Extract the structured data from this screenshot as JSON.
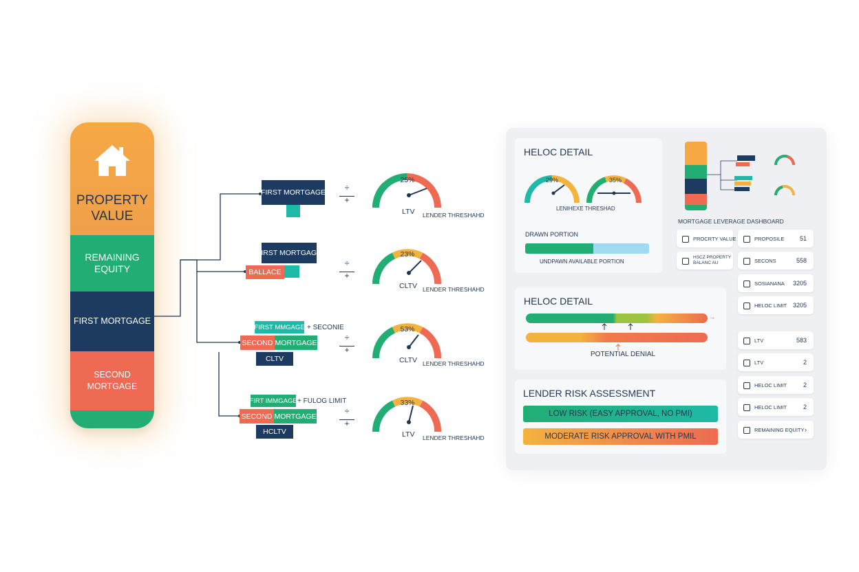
{
  "stack": {
    "property_value": "PROPERTY VALUE",
    "remaining_equity": "REMAINING EQUITY",
    "first_mortgage": "FIRST MORTGAGE",
    "second_mortgage": "SECOND MORTGAGE"
  },
  "flow": {
    "row1": {
      "box1": "FIRST MORTGAGE",
      "gauge_pct": "25%",
      "gauge_label": "LTV",
      "threshold": "LENDER THRESHAHD",
      "op_top": "÷",
      "op_bottom": "+"
    },
    "row2": {
      "box1": "FIRST MORTGAGE",
      "box2": "BALLACE",
      "gauge_pct": "23%",
      "gauge_label": "CLTV",
      "threshold": "LENDER THRESHAHD",
      "op_top": "÷",
      "op_bottom": "+"
    },
    "row3": {
      "box1": "FIRST MMGAGE",
      "box1_note": "+ SECONIE",
      "box2a": "SECOND",
      "box2b": "MORTGAGE",
      "box3": "CLTV",
      "gauge_pct": "53%",
      "gauge_label": "CLTV",
      "threshold": "LENDER THRESHAHD",
      "op_top": "÷",
      "op_bottom": "+"
    },
    "row4": {
      "box1": "FIRT IMMGAGE",
      "box1_note": "+ FULOG LIMIT",
      "box2a": "SECOND",
      "box2b": "MORTGAGE",
      "box3": "HCLTV",
      "gauge_pct": "33%",
      "gauge_label": "LTV",
      "threshold": "LENDER THRESHAHD",
      "op_top": "÷",
      "op_bottom": "+"
    }
  },
  "dashboard": {
    "heloc1": {
      "title": "HELOC DETAIL",
      "gauge1_pct": "29%",
      "gauge2_pct": "35%",
      "threshold": "LENIHEXE THRESHAD",
      "drawn": "DRAWN PORTION",
      "undrawn": "UNDPAWN AVAILABLE PORTION",
      "drawn_fraction": 0.55
    },
    "mini": {
      "title": "MORTGAGE LEVERAGE DASHBOARD",
      "box1": "PROPERTY VALUE"
    },
    "heloc2": {
      "title": "HELOC DETAIL",
      "marker": "POTENTIAL DENIAL",
      "arrow": "→"
    },
    "risk": {
      "title": "LENDER RISK ASSESSMENT",
      "low": "LOW RISK (EASY APPROVAL, NO PMI)",
      "moderate": "MODERATE RISK APPROVAL WITH PMIL"
    },
    "stats_left": [
      {
        "label": "PROCRTY VALUE",
        "value": ""
      },
      {
        "label": "HSCZ PROPERTY BALANC AU",
        "value": ""
      }
    ],
    "stats_right": [
      {
        "label": "PROPOSILE",
        "value": "51"
      },
      {
        "label": "SECONS",
        "value": "558"
      },
      {
        "label": "SOSIANANA",
        "value": "3205"
      },
      {
        "label": "HELOC LIMIT",
        "value": "3205"
      },
      {
        "label": "LTV",
        "value": "583"
      },
      {
        "label": "LTV",
        "value": "2"
      },
      {
        "label": "HELOC LIMIT",
        "value": "2"
      },
      {
        "label": "HELOC LIMIT",
        "value": "2"
      },
      {
        "label": "REMAINING EQUITY",
        "value": ""
      }
    ],
    "stats_right_arrow": "›",
    "colors": {
      "green": "#22ad74",
      "amber": "#f4b23e",
      "coral": "#ee6a52",
      "navy": "#1d3a60",
      "teal": "#1fb9a7"
    }
  }
}
